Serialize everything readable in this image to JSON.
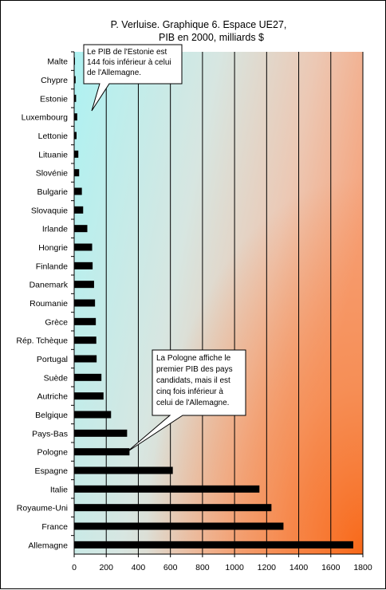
{
  "chart_data": {
    "type": "bar",
    "orientation": "horizontal",
    "title": "P. Verluise. Graphique 6. Espace UE27,",
    "subtitle": "PIB en 2000, milliards $",
    "xlim": [
      0,
      1800
    ],
    "xticks": [
      0,
      200,
      400,
      600,
      800,
      1000,
      1200,
      1400,
      1600,
      1800
    ],
    "grid": "vertical",
    "bar_color": "#000000",
    "categories": [
      "Malte",
      "Chypre",
      "Estonie",
      "Luxembourg",
      "Lettonie",
      "Lituanie",
      "Slovénie",
      "Bulgarie",
      "Slovaquie",
      "Irlande",
      "Hongrie",
      "Finlande",
      "Danemark",
      "Roumanie",
      "Grèce",
      "Rép. Tchèque",
      "Portugal",
      "Suède",
      "Autriche",
      "Belgique",
      "Pays-Bas",
      "Pologne",
      "Espagne",
      "Italie",
      "Royaume-Uni",
      "France",
      "Allemagne"
    ],
    "values": [
      4,
      9,
      12,
      19,
      15,
      26,
      31,
      48,
      56,
      82,
      112,
      115,
      124,
      130,
      135,
      138,
      140,
      170,
      183,
      230,
      330,
      345,
      615,
      1155,
      1230,
      1305,
      1740
    ],
    "annotations": [
      {
        "target": "Estonie",
        "text": [
          "Le PIB de l'Estonie est",
          "144 fois inférieur à celui",
          "de l'Allemagne."
        ]
      },
      {
        "target": "Pologne",
        "text": [
          "La Pologne affiche le",
          "premier PIB des pays",
          "candidats, mais il est",
          "cinq fois inférieur à",
          "celui de l'Allemagne."
        ]
      }
    ]
  }
}
